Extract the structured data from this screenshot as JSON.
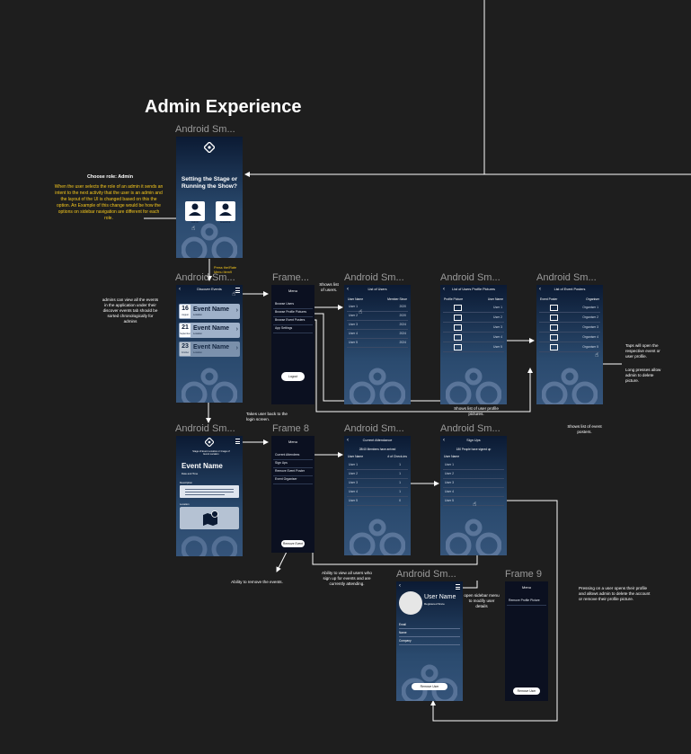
{
  "page": {
    "heading": "Admin Experience",
    "frame_labels": [
      "Android Sm...",
      "Android Sm...",
      "Frame...",
      "Android Sm...",
      "Android Sm...",
      "Android Sm...",
      "Android Sm...",
      "Frame 8",
      "Android Sm...",
      "Android Sm...",
      "Android Sm...",
      "Frame 9"
    ]
  },
  "annotations": {
    "choose_role_title": "Choose role: Admin",
    "choose_role_body": "When the user selects the role of an admin it sends an intent to the next activity that the user is an admin and the layout of the UI is changed based on this the option. An Example of this change would be how the options on sidebar navigation are different for each role.",
    "press_sidebar": "Press the/Rate Menu Item9",
    "admins_view": "admins can view all the events in the application under their discover events tab should be sorted chronologically for admins",
    "shows_users": "Shows list of users.",
    "takes_back": "Takes user back to the login screen.",
    "shows_pictures": "Shows list of user profile pictures.",
    "shows_posters": "Shows list of event posters.",
    "taps_open": "Taps will open the respective event or user profile.",
    "long_press": "Long presses allow admin to delete picture.",
    "ability_remove": "Ability to remove the events.",
    "ability_view": "Ability to view all users who sign up for events and are currently attending.",
    "open_sidebar": "open sidebar menu to modify user details",
    "pressing_user": "Pressing on a user opens their profile and allows admin to delete the account or remove their profile picture."
  },
  "role_screen": {
    "title": "Setting the Stage or Running the Show?",
    "admin_label": "Admin",
    "guest_label": "Guest/Int."
  },
  "discover": {
    "header": "Discover Events",
    "events": [
      {
        "day": "16",
        "month": "August",
        "name": "Event Name",
        "sub": "Location"
      },
      {
        "day": "21",
        "month": "September",
        "name": "Event Name",
        "sub": "Location"
      },
      {
        "day": "23",
        "month": "October",
        "name": "Event Name",
        "sub": "Location"
      }
    ]
  },
  "menu1": {
    "title": "Menu",
    "items": [
      "Browse Users",
      "Browse Profile Pictures",
      "Browse Event Posters",
      "App Settings"
    ],
    "logout": "Logout"
  },
  "users_list": {
    "header": "List of Users",
    "col_a": "User Name",
    "col_b": "Member Since",
    "rows": [
      {
        "name": "User 1",
        "since": "2020"
      },
      {
        "name": "User 2",
        "since": "2020"
      },
      {
        "name": "User 3",
        "since": "2024"
      },
      {
        "name": "User 4",
        "since": "2024"
      },
      {
        "name": "User 5",
        "since": "2024"
      }
    ]
  },
  "pictures_list": {
    "header": "List of Users Profile Pictures",
    "col_a": "Profile Picture",
    "col_b": "User Name",
    "rows": [
      "User 1",
      "User 2",
      "User 3",
      "User 4",
      "User 5"
    ]
  },
  "posters_list": {
    "header": "List of Event Posters",
    "col_a": "Event Poster",
    "col_b": "Organiser",
    "rows": [
      "Organiser 1",
      "Organiser 2",
      "Organiser 3",
      "Organiser 4",
      "Organiser 5"
    ]
  },
  "event_detail": {
    "banner": "Stage of Event Location or Image of Event Location",
    "name": "Event Name",
    "date": "Date and Time",
    "desc_label": "Description",
    "loc_label": "Location"
  },
  "menu2": {
    "title": "Menu",
    "items": [
      "Current Attendees",
      "Sign Ups",
      "Remove Event Poster",
      "Event Organiser"
    ],
    "remove": "Remove Event"
  },
  "attendees": {
    "header": "Current Attendance",
    "subheader": "28/40 Members have arrived",
    "col_a": "User Name",
    "col_b": "# of Check-ins",
    "rows": [
      {
        "name": "User 1",
        "n": "1"
      },
      {
        "name": "User 2",
        "n": "1"
      },
      {
        "name": "User 3",
        "n": "1"
      },
      {
        "name": "User 4",
        "n": "1"
      },
      {
        "name": "User 5",
        "n": "0"
      }
    ]
  },
  "signups": {
    "header": "Sign Ups",
    "subheader": "180 People have signed up",
    "col_a": "User Name",
    "rows": [
      "User 1",
      "User 2",
      "User 3",
      "User 4",
      "User 5"
    ]
  },
  "profile": {
    "name": "User Name",
    "since": "Registered Since",
    "fields": [
      "Email",
      "Name",
      "Company"
    ],
    "remove": "Remove User"
  },
  "menu3": {
    "title": "Menu",
    "items": [
      "Remove Profile Picture"
    ],
    "remove": "Remove User"
  }
}
